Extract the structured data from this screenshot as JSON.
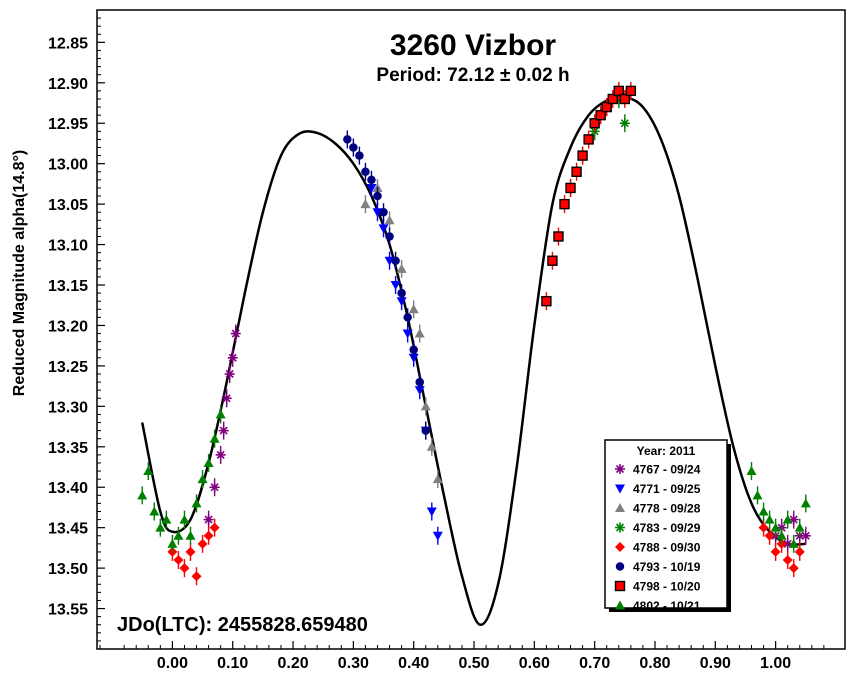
{
  "chart_data": {
    "type": "scatter",
    "title": "3260 Vizbor",
    "subtitle": "Period: 72.12 ± 0.02 h",
    "ylabel": "Reduced Magnitude alpha(14.8°)",
    "xlabel": "",
    "epoch_label": "JDo(LTC): 2455828.659480",
    "xlim": [
      -0.125,
      1.115
    ],
    "ylim": [
      13.6,
      12.81
    ],
    "y_inverted": true,
    "grid": false,
    "legend_position": "bottom-right",
    "legend_title": "Year: 2011",
    "x_ticks": [
      0.0,
      0.1,
      0.2,
      0.3,
      0.4,
      0.5,
      0.6,
      0.7,
      0.8,
      0.9,
      1.0
    ],
    "x_tick_labels": [
      "0.00",
      "0.10",
      "0.20",
      "0.30",
      "0.40",
      "0.50",
      "0.60",
      "0.70",
      "0.80",
      "0.90",
      "1.00"
    ],
    "y_ticks": [
      12.85,
      12.9,
      12.95,
      13.0,
      13.05,
      13.1,
      13.15,
      13.2,
      13.25,
      13.3,
      13.35,
      13.4,
      13.45,
      13.5,
      13.55
    ],
    "y_tick_labels": [
      "12.85",
      "12.90",
      "12.95",
      "13.00",
      "13.05",
      "13.10",
      "13.15",
      "13.20",
      "13.25",
      "13.30",
      "13.35",
      "13.40",
      "13.45",
      "13.50",
      "13.55"
    ],
    "fit_curve": {
      "x": [
        -0.05,
        -0.02,
        0.0,
        0.03,
        0.06,
        0.09,
        0.12,
        0.15,
        0.18,
        0.21,
        0.24,
        0.27,
        0.3,
        0.33,
        0.36,
        0.39,
        0.42,
        0.45,
        0.48,
        0.51,
        0.54,
        0.57,
        0.6,
        0.63,
        0.66,
        0.69,
        0.72,
        0.75,
        0.78,
        0.81,
        0.84,
        0.87,
        0.9,
        0.93,
        0.96,
        0.99,
        1.02,
        1.05
      ],
      "y": [
        13.32,
        13.43,
        13.455,
        13.44,
        13.37,
        13.27,
        13.16,
        13.06,
        12.99,
        12.963,
        12.962,
        12.975,
        13.0,
        13.04,
        13.1,
        13.19,
        13.3,
        13.41,
        13.51,
        13.57,
        13.52,
        13.38,
        13.2,
        13.05,
        12.98,
        12.94,
        12.922,
        12.918,
        12.93,
        12.97,
        13.04,
        13.14,
        13.25,
        13.35,
        13.42,
        13.455,
        13.47,
        13.47
      ]
    },
    "series": [
      {
        "name": "4767 - 09/24",
        "color": "#800080",
        "marker": "asterisk",
        "x": [
          0.06,
          0.07,
          0.08,
          0.085,
          0.09,
          0.095,
          0.1,
          0.105,
          1.0,
          1.01,
          1.02,
          1.03,
          1.04,
          1.05
        ],
        "y": [
          13.44,
          13.4,
          13.36,
          13.33,
          13.29,
          13.26,
          13.24,
          13.21,
          13.46,
          13.45,
          13.47,
          13.44,
          13.46,
          13.46
        ]
      },
      {
        "name": "4771 - 09/25",
        "color": "#0000FF",
        "marker": "triangle-down",
        "x": [
          0.33,
          0.34,
          0.35,
          0.36,
          0.37,
          0.38,
          0.39,
          0.4,
          0.41,
          0.42,
          0.43,
          0.44
        ],
        "y": [
          13.03,
          13.06,
          13.08,
          13.12,
          13.15,
          13.17,
          13.21,
          13.24,
          13.28,
          13.33,
          13.43,
          13.46
        ]
      },
      {
        "name": "4778 - 09/28",
        "color": "#808080",
        "marker": "triangle",
        "x": [
          0.32,
          0.34,
          0.36,
          0.38,
          0.4,
          0.41,
          0.42,
          0.43,
          0.44
        ],
        "y": [
          13.05,
          13.03,
          13.07,
          13.13,
          13.18,
          13.21,
          13.3,
          13.35,
          13.39
        ]
      },
      {
        "name": "4783 - 09/29",
        "color": "#008000",
        "marker": "asterisk",
        "x": [
          0.66,
          0.68,
          0.7,
          0.72,
          0.74,
          0.75
        ],
        "y": [
          13.03,
          12.99,
          12.96,
          12.93,
          12.92,
          12.95
        ]
      },
      {
        "name": "4788 - 09/30",
        "color": "#FF0000",
        "marker": "diamond",
        "x": [
          0.0,
          0.01,
          0.02,
          0.03,
          0.04,
          0.05,
          0.06,
          0.07,
          0.98,
          0.99,
          1.0,
          1.01,
          1.02,
          1.03,
          1.04
        ],
        "y": [
          13.48,
          13.49,
          13.5,
          13.48,
          13.51,
          13.47,
          13.46,
          13.45,
          13.45,
          13.46,
          13.48,
          13.47,
          13.49,
          13.5,
          13.48
        ]
      },
      {
        "name": "4793 - 10/19",
        "color": "#000080",
        "marker": "circle",
        "x": [
          0.29,
          0.3,
          0.31,
          0.32,
          0.33,
          0.34,
          0.35,
          0.36,
          0.37,
          0.38,
          0.39,
          0.4,
          0.41,
          0.42
        ],
        "y": [
          12.97,
          12.98,
          12.99,
          13.01,
          13.02,
          13.04,
          13.06,
          13.09,
          13.12,
          13.16,
          13.19,
          13.23,
          13.27,
          13.33
        ]
      },
      {
        "name": "4798 - 10/20",
        "color": "#FF0000",
        "marker": "square",
        "x": [
          0.62,
          0.63,
          0.64,
          0.65,
          0.66,
          0.67,
          0.68,
          0.69,
          0.7,
          0.71,
          0.72,
          0.73,
          0.74,
          0.75,
          0.76
        ],
        "y": [
          13.17,
          13.12,
          13.09,
          13.05,
          13.03,
          13.01,
          12.99,
          12.97,
          12.95,
          12.94,
          12.93,
          12.92,
          12.91,
          12.92,
          12.91
        ]
      },
      {
        "name": "4802 - 10/21",
        "color": "#008000",
        "marker": "triangle",
        "x": [
          -0.05,
          -0.04,
          -0.03,
          -0.02,
          -0.01,
          0.0,
          0.01,
          0.02,
          0.03,
          0.04,
          0.05,
          0.06,
          0.07,
          0.08,
          0.96,
          0.97,
          0.98,
          0.99,
          1.0,
          1.01,
          1.02,
          1.03,
          1.04,
          1.05
        ],
        "y": [
          13.41,
          13.38,
          13.43,
          13.45,
          13.44,
          13.47,
          13.46,
          13.44,
          13.46,
          13.42,
          13.39,
          13.37,
          13.34,
          13.31,
          13.38,
          13.41,
          13.43,
          13.44,
          13.45,
          13.46,
          13.44,
          13.47,
          13.45,
          13.42
        ]
      }
    ]
  }
}
